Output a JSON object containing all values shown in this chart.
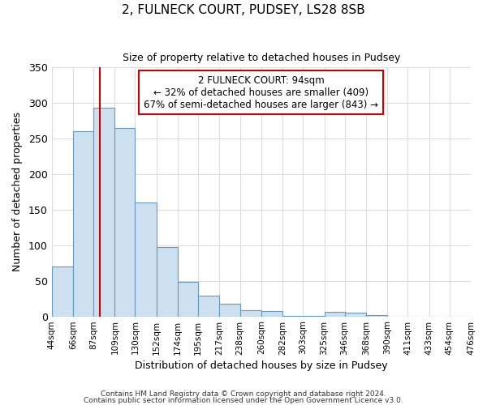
{
  "title": "2, FULNECK COURT, PUDSEY, LS28 8SB",
  "subtitle": "Size of property relative to detached houses in Pudsey",
  "xlabel": "Distribution of detached houses by size in Pudsey",
  "ylabel": "Number of detached properties",
  "bar_values": [
    70,
    260,
    293,
    265,
    160,
    97,
    49,
    29,
    18,
    9,
    7,
    1,
    1,
    6,
    5,
    2,
    0,
    0,
    0,
    0
  ],
  "bin_labels": [
    "44sqm",
    "66sqm",
    "87sqm",
    "109sqm",
    "130sqm",
    "152sqm",
    "174sqm",
    "195sqm",
    "217sqm",
    "238sqm",
    "260sqm",
    "282sqm",
    "303sqm",
    "325sqm",
    "346sqm",
    "368sqm",
    "390sqm",
    "411sqm",
    "433sqm",
    "454sqm",
    "476sqm"
  ],
  "bar_color": "#cce0f0",
  "bar_edge_color": "#6699bb",
  "vline_x": 94,
  "bin_edges": [
    44,
    66,
    87,
    109,
    130,
    152,
    174,
    195,
    217,
    238,
    260,
    282,
    303,
    325,
    346,
    368,
    390,
    411,
    433,
    454,
    476
  ],
  "ylim": [
    0,
    350
  ],
  "annotation_title": "2 FULNECK COURT: 94sqm",
  "annotation_line1": "← 32% of detached houses are smaller (409)",
  "annotation_line2": "67% of semi-detached houses are larger (843) →",
  "annotation_box_color": "#ffffff",
  "annotation_box_edge_color": "#cc0000",
  "vline_color": "#cc0000",
  "footnote1": "Contains HM Land Registry data © Crown copyright and database right 2024.",
  "footnote2": "Contains public sector information licensed under the Open Government Licence v3.0.",
  "background_color": "#ffffff",
  "plot_bg_color": "#ffffff"
}
